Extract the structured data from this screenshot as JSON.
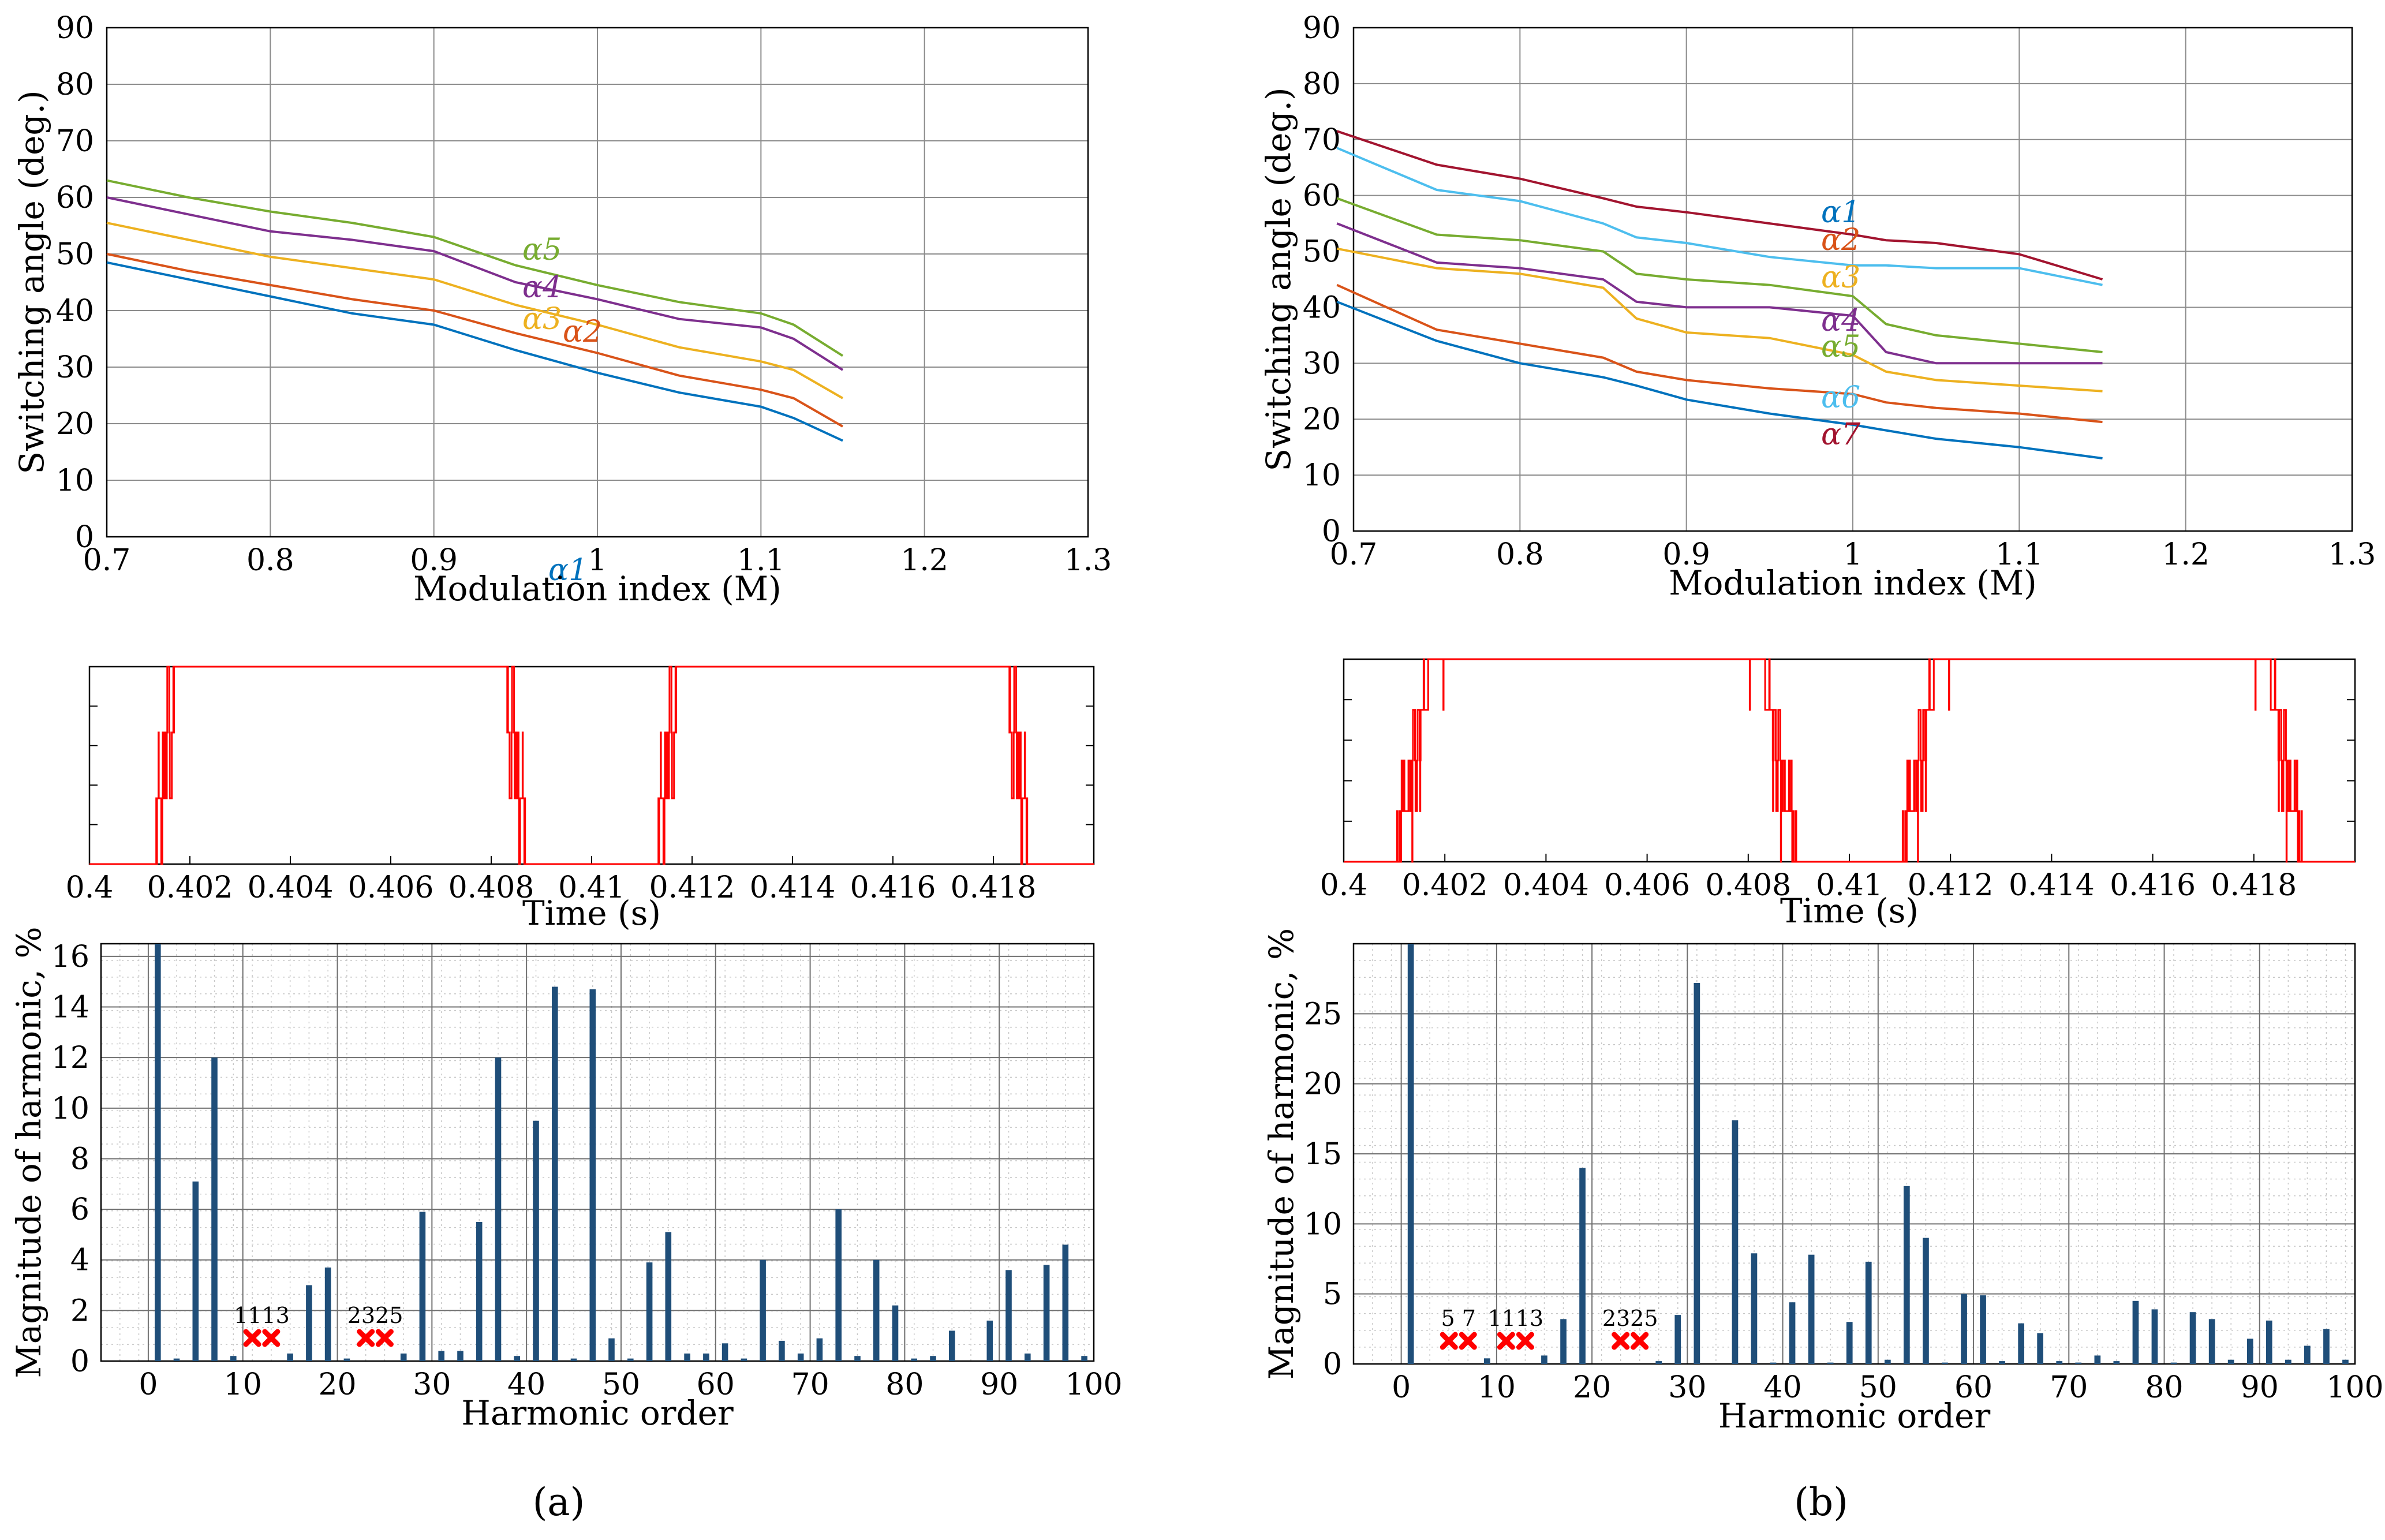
{
  "chart_data": [
    {
      "id": "a1",
      "type": "line",
      "xlabel": "Modulation index (M)",
      "ylabel": "Switching angle (deg.)",
      "xlim": [
        0.7,
        1.3
      ],
      "ylim": [
        0,
        90
      ],
      "xticks": [
        "0.7",
        "0.8",
        "0.9",
        "1",
        "1.1",
        "1.2",
        "1.3"
      ],
      "yticks": [
        "0",
        "10",
        "20",
        "30",
        "40",
        "50",
        "60",
        "70",
        "80",
        "90"
      ],
      "grid": true,
      "x": [
        0.7,
        0.75,
        0.8,
        0.85,
        0.9,
        0.95,
        1.0,
        1.05,
        1.1,
        1.12,
        1.15
      ],
      "series": [
        {
          "name": "α1",
          "color": "#0072bd",
          "values": [
            48.5,
            45.5,
            42.5,
            39.5,
            37.5,
            33,
            29,
            25.5,
            23,
            21,
            17
          ]
        },
        {
          "name": "α2",
          "color": "#d95319",
          "values": [
            50,
            47,
            44.5,
            42,
            40,
            36,
            32.5,
            28.5,
            26,
            24.5,
            19.5
          ]
        },
        {
          "name": "α3",
          "color": "#edb120",
          "values": [
            55.5,
            52.5,
            49.5,
            47.5,
            45.5,
            41,
            37.5,
            33.5,
            31,
            29.5,
            24.5
          ]
        },
        {
          "name": "α4",
          "color": "#7e2f8e",
          "values": [
            60,
            57,
            54,
            52.5,
            50.5,
            45,
            42,
            38.5,
            37,
            35,
            29.5
          ]
        },
        {
          "name": "α5",
          "color": "#77ac30",
          "values": [
            63,
            60,
            57.5,
            55.5,
            53,
            48,
            44.5,
            41.5,
            39.5,
            37.5,
            32
          ]
        }
      ],
      "labels": [
        "α1",
        "α2",
        "α3",
        "α4",
        "α5"
      ]
    },
    {
      "id": "b1",
      "type": "line",
      "xlabel": "Modulation index (M)",
      "ylabel": "Switching angle (deg.)",
      "xlim": [
        0.7,
        1.3
      ],
      "ylim": [
        0,
        90
      ],
      "xticks": [
        "0.7",
        "0.8",
        "0.9",
        "1",
        "1.1",
        "1.2",
        "1.3"
      ],
      "yticks": [
        "0",
        "10",
        "20",
        "30",
        "40",
        "50",
        "60",
        "70",
        "80",
        "90"
      ],
      "grid": true,
      "x": [
        0.69,
        0.75,
        0.8,
        0.85,
        0.87,
        0.9,
        0.95,
        1.0,
        1.02,
        1.05,
        1.1,
        1.15
      ],
      "series": [
        {
          "name": "α1",
          "color": "#0072bd",
          "values": [
            41,
            34,
            30,
            27.5,
            26,
            23.5,
            21,
            19,
            18,
            16.5,
            15,
            13
          ]
        },
        {
          "name": "α2",
          "color": "#d95319",
          "values": [
            44,
            36,
            33.5,
            31,
            28.5,
            27,
            25.5,
            24.5,
            23,
            22,
            21,
            19.5
          ]
        },
        {
          "name": "α3",
          "color": "#edb120",
          "values": [
            50.5,
            47,
            46,
            43.5,
            38,
            35.5,
            34.5,
            31.5,
            28.5,
            27,
            26,
            25
          ]
        },
        {
          "name": "α4",
          "color": "#7e2f8e",
          "values": [
            55,
            48,
            47,
            45,
            41,
            40,
            40,
            38.5,
            32,
            30,
            30,
            30
          ]
        },
        {
          "name": "α5",
          "color": "#77ac30",
          "values": [
            59.5,
            53,
            52,
            50,
            46,
            45,
            44,
            42,
            37,
            35,
            33.5,
            32
          ]
        },
        {
          "name": "α6",
          "color": "#4dbeee",
          "values": [
            68.5,
            61,
            59,
            55,
            52.5,
            51.5,
            49,
            47.5,
            47.5,
            47,
            47,
            44
          ]
        },
        {
          "name": "α7",
          "color": "#a2142f",
          "values": [
            71.5,
            65.5,
            63,
            59.5,
            58,
            57,
            55,
            53,
            52,
            51.5,
            49.5,
            45
          ]
        }
      ],
      "labels": [
        "α7",
        "α6",
        "α5",
        "α4",
        "α3",
        "α2",
        "α1"
      ]
    },
    {
      "id": "a2",
      "type": "line",
      "xlabel": "Time (s)",
      "xlim": [
        0.4,
        0.42
      ],
      "ylim": [
        0,
        3
      ],
      "xticks": [
        "0.4",
        "0.402",
        "0.404",
        "0.406",
        "0.408",
        "0.41",
        "0.412",
        "0.414",
        "0.416",
        "0.418"
      ],
      "color": "#ff0000",
      "angles": [
        48.5,
        50,
        55.5,
        60,
        63
      ],
      "x": [
        0.4,
        0.42
      ],
      "values": [
        0,
        3
      ]
    },
    {
      "id": "b2",
      "type": "line",
      "xlabel": "Time (s)",
      "xlim": [
        0.4,
        0.42
      ],
      "ylim": [
        0,
        4
      ],
      "xticks": [
        "0.4",
        "0.402",
        "0.404",
        "0.406",
        "0.408",
        "0.41",
        "0.412",
        "0.414",
        "0.416",
        "0.418"
      ],
      "color": "#ff0000",
      "angles": [
        41,
        44,
        50.5,
        55,
        59.5,
        68.5,
        71.5
      ],
      "x": [
        0.4,
        0.42
      ],
      "values": [
        0,
        4
      ]
    },
    {
      "id": "a3",
      "type": "bar",
      "xlabel": "Harmonic order",
      "ylabel": "Magnitude of harmonic, %",
      "xlim": [
        -5,
        100
      ],
      "ylim": [
        0,
        16.5
      ],
      "xticks": [
        "0",
        "10",
        "20",
        "30",
        "40",
        "50",
        "60",
        "70",
        "80",
        "90",
        "100"
      ],
      "yticks": [
        "0",
        "2",
        "4",
        "6",
        "8",
        "10",
        "12",
        "14",
        "16"
      ],
      "color": "#1f4e79",
      "categories": [
        1,
        3,
        5,
        7,
        9,
        11,
        13,
        15,
        17,
        19,
        21,
        23,
        25,
        27,
        29,
        31,
        33,
        35,
        37,
        39,
        41,
        43,
        45,
        47,
        49,
        51,
        53,
        55,
        57,
        59,
        61,
        63,
        65,
        67,
        69,
        71,
        73,
        75,
        77,
        79,
        81,
        83,
        85,
        87,
        89,
        91,
        93,
        95,
        97,
        99
      ],
      "values": [
        16.5,
        0.1,
        7.1,
        12,
        0.2,
        0,
        0,
        0.3,
        3,
        3.7,
        0.1,
        0,
        0,
        0.3,
        5.9,
        0.4,
        0.4,
        5.5,
        12,
        0.2,
        9.5,
        14.8,
        0.1,
        14.7,
        0.9,
        0.1,
        3.9,
        5.1,
        0.3,
        0.3,
        0.7,
        0.1,
        4,
        0.8,
        0.3,
        0.9,
        6,
        0.2,
        4,
        2.2,
        0.1,
        0.2,
        1.2,
        0,
        1.6,
        3.6,
        0.3,
        3.8,
        4.6,
        0.2
      ],
      "eliminated": [
        11,
        13,
        23,
        25
      ],
      "eliminated_labels": [
        "1113",
        "2325"
      ]
    },
    {
      "id": "b3",
      "type": "bar",
      "xlabel": "Harmonic order",
      "ylabel": "Magnitude of harmonic, %",
      "xlim": [
        -5,
        100
      ],
      "ylim": [
        0,
        30
      ],
      "xticks": [
        "0",
        "10",
        "20",
        "30",
        "40",
        "50",
        "60",
        "70",
        "80",
        "90",
        "100"
      ],
      "yticks": [
        "0",
        "5",
        "10",
        "15",
        "20",
        "25"
      ],
      "color": "#1f4e79",
      "categories": [
        1,
        3,
        5,
        7,
        9,
        11,
        13,
        15,
        17,
        19,
        21,
        23,
        25,
        27,
        29,
        31,
        33,
        35,
        37,
        39,
        41,
        43,
        45,
        47,
        49,
        51,
        53,
        55,
        57,
        59,
        61,
        63,
        65,
        67,
        69,
        71,
        73,
        75,
        77,
        79,
        81,
        83,
        85,
        87,
        89,
        91,
        93,
        95,
        97,
        99
      ],
      "values": [
        30,
        0,
        0,
        0,
        0.4,
        0,
        0,
        0.6,
        3.2,
        14,
        0,
        0,
        0,
        0.2,
        3.5,
        27.2,
        0,
        17.4,
        7.9,
        0.1,
        4.4,
        7.8,
        0.1,
        3,
        7.3,
        0.3,
        12.7,
        9,
        0.1,
        5,
        4.9,
        0.2,
        2.9,
        2.2,
        0.2,
        0.1,
        0.6,
        0.2,
        4.5,
        3.9,
        0.1,
        3.7,
        3.2,
        0.3,
        1.8,
        3.1,
        0.3,
        1.3,
        2.5,
        0.3
      ],
      "eliminated": [
        5,
        7,
        11,
        13,
        23,
        25
      ],
      "eliminated_labels": [
        "5 7",
        "1113",
        "2325"
      ]
    }
  ],
  "panel_labels": [
    "(a)",
    "(b)"
  ]
}
